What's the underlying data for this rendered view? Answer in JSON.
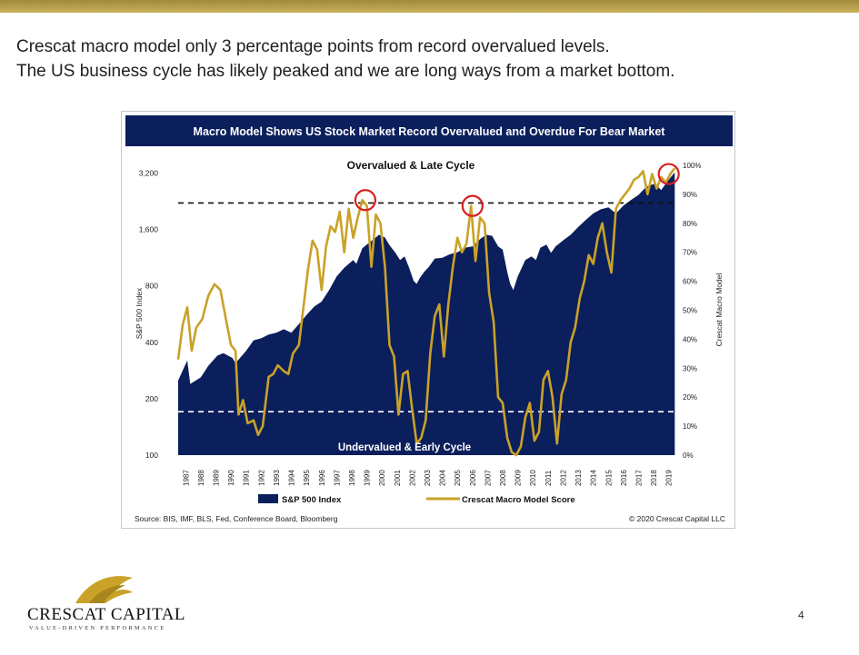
{
  "slide": {
    "headline_line1": "Crescat macro model only 3 percentage points from record overvalued levels.",
    "headline_line2": "The US business cycle has likely peaked and we are long ways from a market bottom.",
    "page_number": "4",
    "logo_name": "CRESCAT CAPITAL",
    "logo_tagline": "VALUE-DRIVEN PERFORMANCE"
  },
  "chart_data": {
    "type": "area",
    "title": "Macro Model Shows US Stock Market Record Overvalued and Overdue For Bear Market",
    "ylabel_left": "S&P 500 Index",
    "ylabel_right": "Crescat Macro Model",
    "annotation_top": "Overvalued & Late Cycle",
    "annotation_bottom": "Undervalued & Early Cycle",
    "source": "Source: BIS, IMF, BLS, Fed, Conference Board, Bloomberg",
    "copyright": "© 2020 Crescat Capital LLC",
    "left_axis": {
      "scale": "log",
      "ticks": [
        "3,200",
        "1,600",
        "800",
        "400",
        "200",
        "100"
      ],
      "tick_values": [
        3200,
        1600,
        800,
        400,
        200,
        100
      ],
      "range": [
        100,
        3600
      ]
    },
    "right_axis": {
      "ticks": [
        "100%",
        "90%",
        "80%",
        "70%",
        "60%",
        "50%",
        "40%",
        "30%",
        "20%",
        "10%",
        "0%"
      ],
      "tick_values": [
        100,
        90,
        80,
        70,
        60,
        50,
        40,
        30,
        20,
        10,
        0
      ],
      "range": [
        0,
        100
      ]
    },
    "x_ticks": [
      "1987",
      "1988",
      "1989",
      "1990",
      "1991",
      "1992",
      "1993",
      "1994",
      "1995",
      "1996",
      "1997",
      "1998",
      "1999",
      "2000",
      "2001",
      "2002",
      "2003",
      "2004",
      "2005",
      "2006",
      "2007",
      "2008",
      "2009",
      "2010",
      "2011",
      "2012",
      "2013",
      "2014",
      "2015",
      "2016",
      "2017",
      "2018",
      "2019"
    ],
    "x_range": [
      1987,
      2020
    ],
    "reference_lines": [
      87,
      15
    ],
    "highlight_points": [
      {
        "x": 1999.4,
        "y": 88
      },
      {
        "x": 2006.5,
        "y": 86
      },
      {
        "x": 2019.5,
        "y": 97
      }
    ],
    "legend": [
      "S&P 500 Index",
      "Crescat Macro Model Score"
    ],
    "colors": {
      "title_bar": "#0b1f5c",
      "area": "#0b1f5c",
      "line": "#c9a227",
      "circle": "#d62020",
      "dashed": "#000000"
    },
    "series": [
      {
        "name": "S&P 500 Index",
        "x": [
          1987.0,
          1987.6,
          1987.8,
          1988.5,
          1989.0,
          1989.6,
          1990.0,
          1990.6,
          1990.8,
          1991.5,
          1992.0,
          1992.5,
          1993.0,
          1993.5,
          1994.0,
          1994.5,
          1995.0,
          1995.5,
          1996.0,
          1996.5,
          1997.0,
          1997.5,
          1998.0,
          1998.6,
          1998.8,
          1999.2,
          1999.6,
          2000.0,
          2000.3,
          2000.7,
          2001.0,
          2001.4,
          2001.7,
          2002.0,
          2002.3,
          2002.6,
          2002.8,
          2003.0,
          2003.3,
          2003.6,
          2004.0,
          2004.5,
          2005.0,
          2005.5,
          2006.0,
          2006.5,
          2007.0,
          2007.4,
          2007.8,
          2008.2,
          2008.5,
          2008.8,
          2009.0,
          2009.2,
          2009.5,
          2010.0,
          2010.4,
          2010.7,
          2011.0,
          2011.4,
          2011.7,
          2012.0,
          2012.5,
          2013.0,
          2013.5,
          2014.0,
          2014.5,
          2015.0,
          2015.5,
          2016.0,
          2016.5,
          2017.0,
          2017.5,
          2018.0,
          2018.5,
          2018.8,
          2019.0,
          2019.5,
          2019.9
        ],
        "y": [
          250,
          320,
          240,
          260,
          300,
          340,
          350,
          330,
          310,
          360,
          410,
          420,
          440,
          450,
          470,
          450,
          500,
          560,
          620,
          660,
          760,
          900,
          1000,
          1100,
          1050,
          1270,
          1350,
          1430,
          1500,
          1450,
          1320,
          1200,
          1100,
          1150,
          1000,
          850,
          820,
          880,
          950,
          1010,
          1120,
          1130,
          1180,
          1210,
          1280,
          1300,
          1420,
          1500,
          1480,
          1300,
          1250,
          950,
          820,
          760,
          900,
          1100,
          1150,
          1100,
          1280,
          1330,
          1200,
          1300,
          1400,
          1500,
          1650,
          1800,
          1950,
          2050,
          2100,
          1950,
          2150,
          2300,
          2450,
          2700,
          2800,
          2700,
          2600,
          2950,
          3230
        ]
      },
      {
        "name": "Crescat Macro Model Score",
        "x": [
          1987.0,
          1987.3,
          1987.6,
          1987.9,
          1988.2,
          1988.6,
          1989.0,
          1989.4,
          1989.8,
          1990.2,
          1990.5,
          1990.8,
          1991.0,
          1991.3,
          1991.6,
          1992.0,
          1992.3,
          1992.6,
          1993.0,
          1993.3,
          1993.6,
          1994.0,
          1994.3,
          1994.6,
          1995.0,
          1995.3,
          1995.6,
          1995.9,
          1996.2,
          1996.5,
          1996.8,
          1997.1,
          1997.4,
          1997.7,
          1998.0,
          1998.3,
          1998.6,
          1998.9,
          1999.2,
          1999.5,
          1999.8,
          2000.1,
          2000.4,
          2000.7,
          2001.0,
          2001.3,
          2001.6,
          2001.9,
          2002.2,
          2002.5,
          2002.8,
          2003.1,
          2003.4,
          2003.7,
          2004.0,
          2004.3,
          2004.6,
          2004.9,
          2005.2,
          2005.5,
          2005.8,
          2006.1,
          2006.4,
          2006.7,
          2007.0,
          2007.3,
          2007.6,
          2007.9,
          2008.2,
          2008.5,
          2008.8,
          2009.1,
          2009.4,
          2009.7,
          2010.0,
          2010.3,
          2010.6,
          2010.9,
          2011.2,
          2011.5,
          2011.8,
          2012.1,
          2012.4,
          2012.7,
          2013.0,
          2013.3,
          2013.6,
          2013.9,
          2014.2,
          2014.5,
          2014.8,
          2015.1,
          2015.4,
          2015.7,
          2016.0,
          2016.3,
          2016.6,
          2016.9,
          2017.2,
          2017.5,
          2017.8,
          2018.1,
          2018.4,
          2018.7,
          2019.0,
          2019.3,
          2019.6,
          2019.9
        ],
        "y": [
          33,
          45,
          51,
          36,
          44,
          47,
          55,
          59,
          57,
          46,
          38,
          36,
          14,
          19,
          11,
          12,
          7,
          10,
          27,
          28,
          31,
          29,
          28,
          35,
          38,
          51,
          64,
          74,
          71,
          57,
          72,
          79,
          77,
          84,
          70,
          85,
          75,
          82,
          88,
          86,
          65,
          83,
          80,
          65,
          38,
          34,
          14,
          28,
          29,
          16,
          4,
          6,
          12,
          35,
          48,
          52,
          34,
          52,
          65,
          75,
          70,
          73,
          86,
          67,
          82,
          80,
          56,
          46,
          20,
          18,
          6,
          1,
          0,
          3,
          13,
          18,
          5,
          8,
          26,
          29,
          20,
          4,
          21,
          26,
          39,
          44,
          54,
          60,
          69,
          66,
          75,
          80,
          70,
          63,
          85,
          88,
          90,
          92,
          95,
          96,
          98,
          90,
          97,
          92,
          96,
          94,
          97,
          99
        ]
      }
    ]
  }
}
